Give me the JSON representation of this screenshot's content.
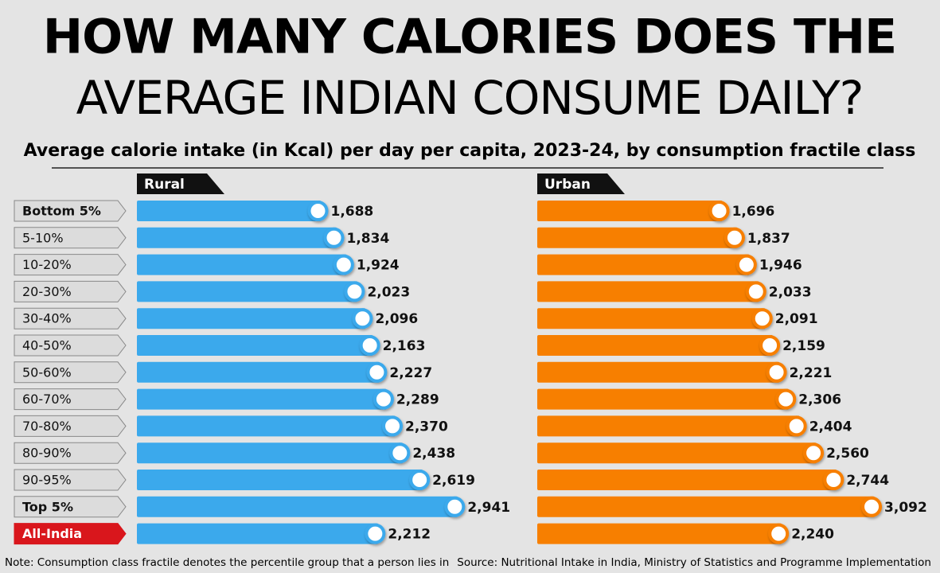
{
  "title_lines": [
    "HOW MANY CALORIES DOES THE",
    "AVERAGE INDIAN CONSUME DAILY?"
  ],
  "chart_data": {
    "type": "bar",
    "orientation": "horizontal",
    "subtitle": "Average calorie intake (in Kcal) per day per capita, 2023-24, by consumption fractile class",
    "categories": [
      "Bottom 5%",
      "5-10%",
      "10-20%",
      "20-30%",
      "30-40%",
      "40-50%",
      "50-60%",
      "60-70%",
      "70-80%",
      "80-90%",
      "90-95%",
      "Top 5%",
      "All-India"
    ],
    "xlim": [
      0,
      3500
    ],
    "series": [
      {
        "name": "Rural",
        "color": "#3ba9ec",
        "values": [
          1688,
          1834,
          1924,
          2023,
          2096,
          2163,
          2227,
          2289,
          2370,
          2438,
          2619,
          2941,
          2212
        ],
        "value_labels": [
          "1,688",
          "1,834",
          "1,924",
          "2,023",
          "2,096",
          "2,163",
          "2,227",
          "2,289",
          "2,370",
          "2,438",
          "2,619",
          "2,941",
          "2,212"
        ]
      },
      {
        "name": "Urban",
        "color": "#f77f00",
        "values": [
          1696,
          1837,
          1946,
          2033,
          2091,
          2159,
          2221,
          2306,
          2404,
          2560,
          2744,
          3092,
          2240
        ],
        "value_labels": [
          "1,696",
          "1,837",
          "1,946",
          "2,033",
          "2,091",
          "2,159",
          "2,221",
          "2,306",
          "2,404",
          "2,560",
          "2,744",
          "3,092",
          "2,240"
        ]
      }
    ]
  },
  "note": "Note: Consumption class fractile denotes the percentile group that a person lies in",
  "source": "Source: Nutritional Intake in India, Ministry of Statistics and Programme Implementation"
}
